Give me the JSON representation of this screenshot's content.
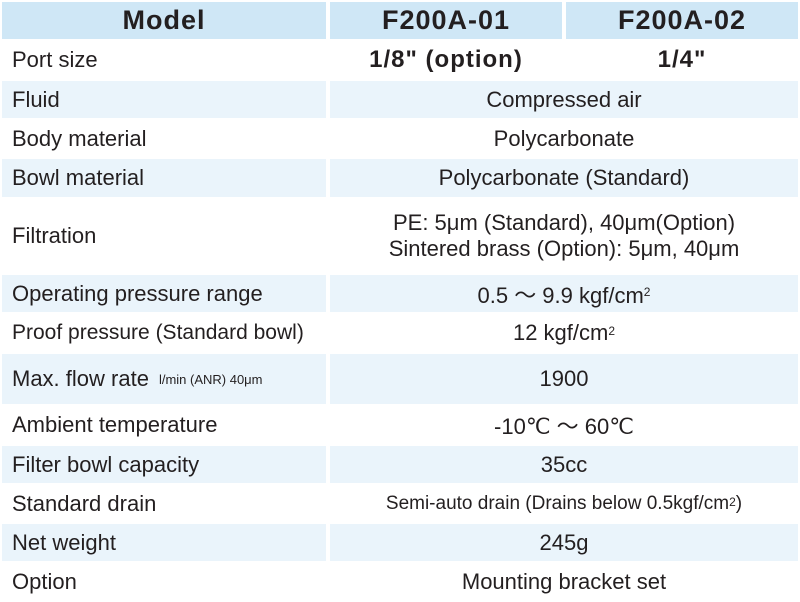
{
  "header": {
    "model": "Model",
    "col1": "F200A-01",
    "col2": "F200A-02"
  },
  "rows": {
    "port_size": {
      "label": "Port size",
      "value1": "1/8\" (option)",
      "value2": "1/4\""
    },
    "fluid": {
      "label": "Fluid",
      "value": "Compressed air"
    },
    "body_material": {
      "label": "Body material",
      "value": "Polycarbonate"
    },
    "bowl_material": {
      "label": "Bowl material",
      "value": "Polycarbonate (Standard)"
    },
    "filtration": {
      "label": "Filtration",
      "line1": "PE: 5μm (Standard), 40μm(Option)",
      "line2": "Sintered brass (Option): 5μm, 40μm"
    },
    "operating_pressure": {
      "label": "Operating pressure range",
      "value": "0.5 ～ 9.9 kgf/cm",
      "sup": "2"
    },
    "proof_pressure": {
      "label": "Proof pressure (Standard bowl)",
      "value": "12 kgf/cm",
      "sup": "2"
    },
    "max_flow": {
      "label": "Max. flow rate",
      "note": "l/min (ANR) 40μm",
      "value": "1900"
    },
    "ambient_temp": {
      "label": "Ambient temperature",
      "value": "-10℃ ～ 60℃"
    },
    "bowl_capacity": {
      "label": "Filter bowl capacity",
      "value": "35cc"
    },
    "standard_drain": {
      "label": "Standard drain",
      "value": "Semi-auto drain (Drains below 0.5kgf/cm",
      "sup": "2",
      "tail": ")"
    },
    "net_weight": {
      "label": "Net weight",
      "value": "245g"
    },
    "option": {
      "label": "Option",
      "value": "Mounting bracket set"
    }
  }
}
